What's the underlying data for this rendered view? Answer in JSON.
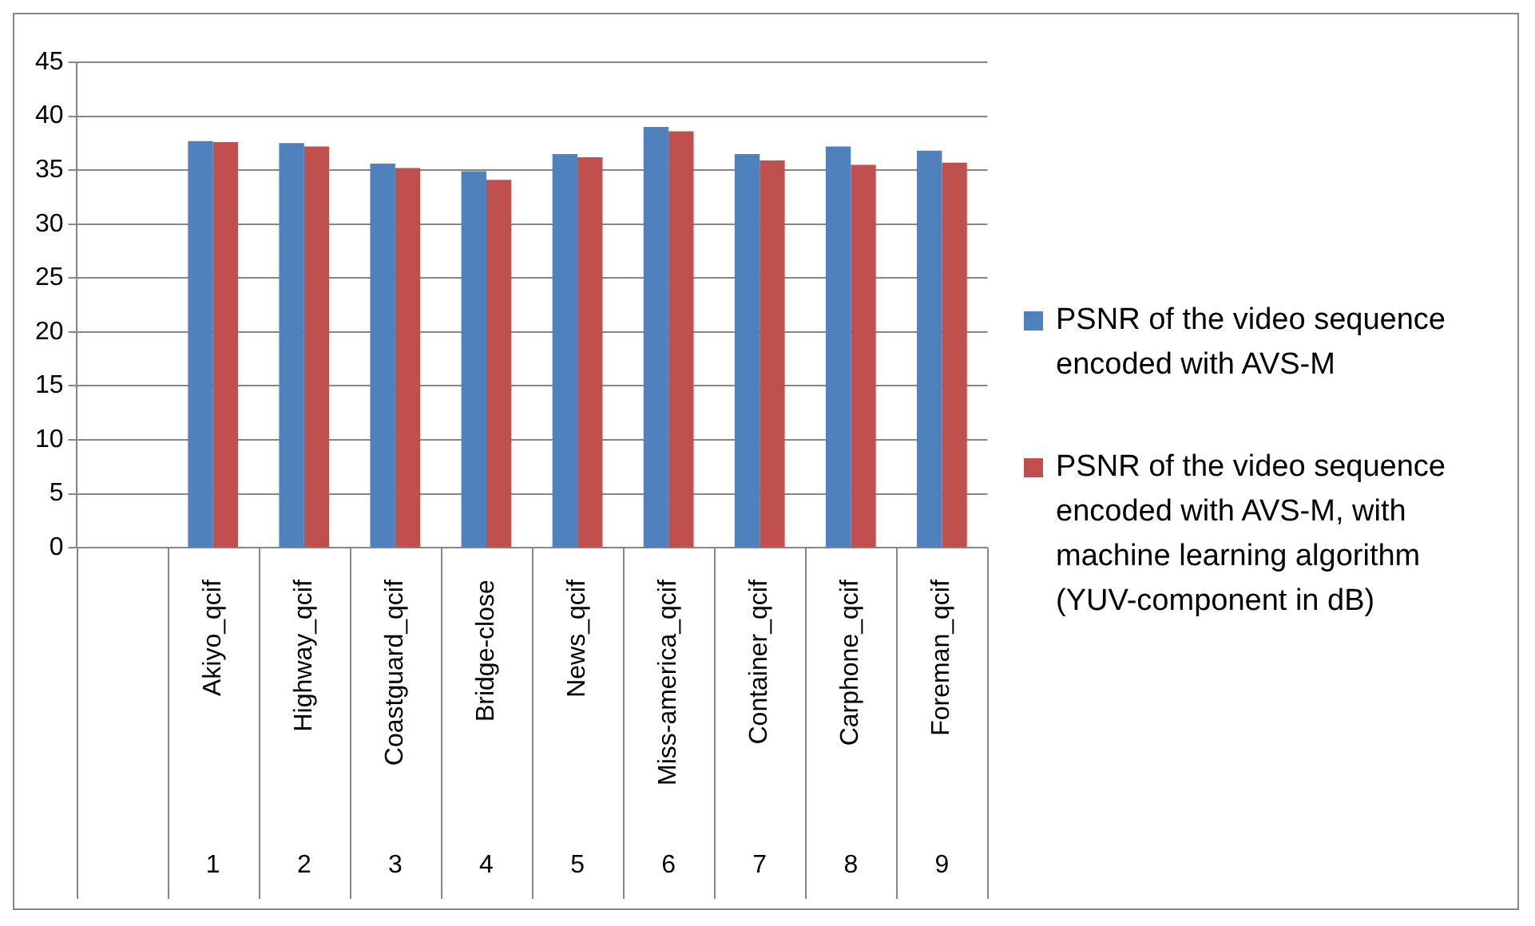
{
  "chart_data": {
    "type": "bar",
    "categories": [
      null,
      "Akiyo_qcif",
      "Highway_qcif",
      "Coastguard_qcif",
      "Bridge-close",
      "News_qcif",
      "Miss-america_qcif",
      "Container_qcif",
      "Carphone_qcif",
      "Foreman_qcif"
    ],
    "series": [
      {
        "name": "PSNR of the video sequence encoded with AVS-M",
        "color": "#4f81bd",
        "values": [
          null,
          37.7,
          37.5,
          35.6,
          34.9,
          36.5,
          39.0,
          36.5,
          37.2,
          36.8
        ]
      },
      {
        "name": "PSNR of the video sequence encoded with AVS-M, with machine learning algorithm (YUV-component in dB)",
        "color": "#c0504d",
        "values": [
          null,
          37.6,
          37.2,
          35.2,
          34.1,
          36.2,
          38.6,
          35.9,
          35.5,
          35.7
        ]
      }
    ],
    "annotations": [
      "1",
      "2",
      "3",
      "4",
      "5",
      "6",
      "7",
      "8",
      "9"
    ],
    "ylim": [
      0,
      45
    ],
    "yticks": [
      0,
      5,
      10,
      15,
      20,
      25,
      30,
      35,
      40,
      45
    ],
    "grid": "y",
    "legend": "right"
  }
}
